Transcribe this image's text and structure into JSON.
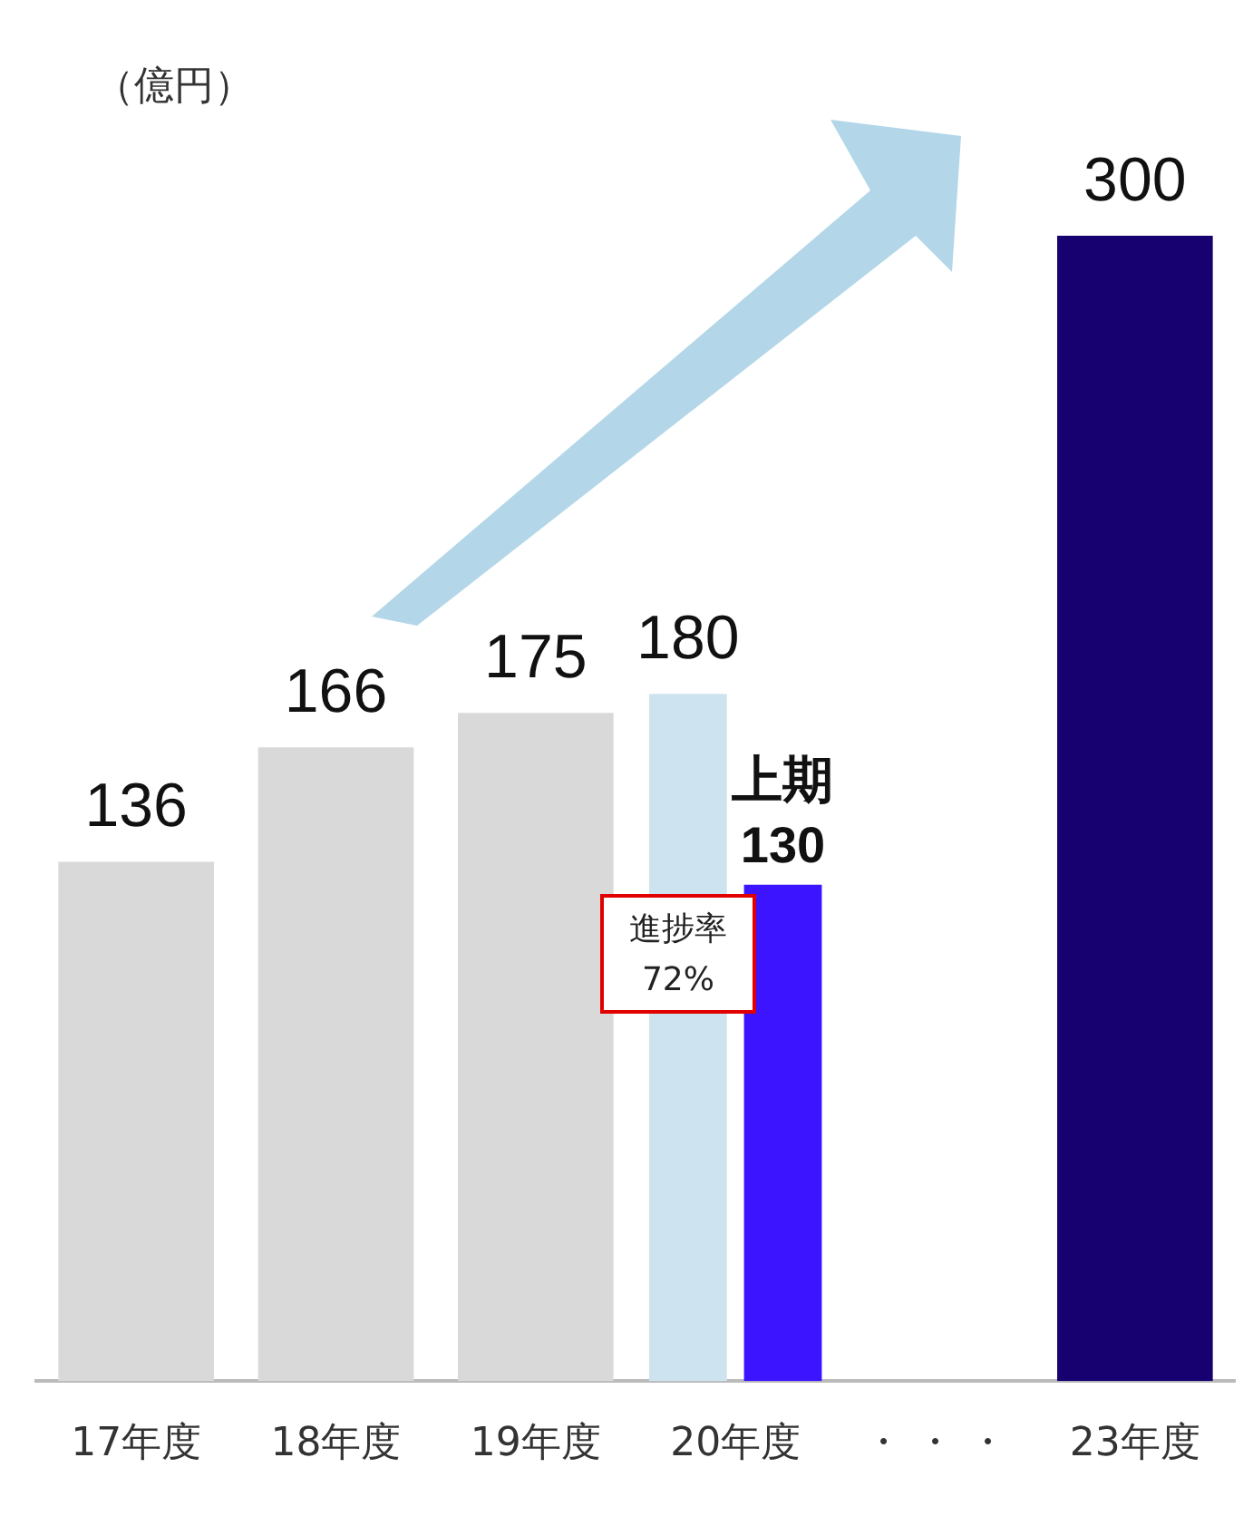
{
  "chart_data": {
    "type": "bar",
    "ylabel": "（億円）",
    "categories": [
      "17年度",
      "18年度",
      "19年度",
      "20年度",
      "・ ・ ・",
      "23年度"
    ],
    "series": [
      {
        "colors": [
          "#d9d9d9",
          "#d9d9d9",
          "#d9d9d9",
          "#cde4f0",
          null,
          "#170070"
        ],
        "values": [
          136,
          166,
          175,
          180,
          null,
          300
        ]
      },
      {
        "name": "上期",
        "color": "#3c14ff",
        "values": [
          null,
          null,
          null,
          130,
          null,
          null
        ]
      }
    ],
    "data_labels": true,
    "legend": false,
    "grid": false,
    "tick_labels": "x",
    "annotations": [
      "進捗率\n72%"
    ]
  }
}
